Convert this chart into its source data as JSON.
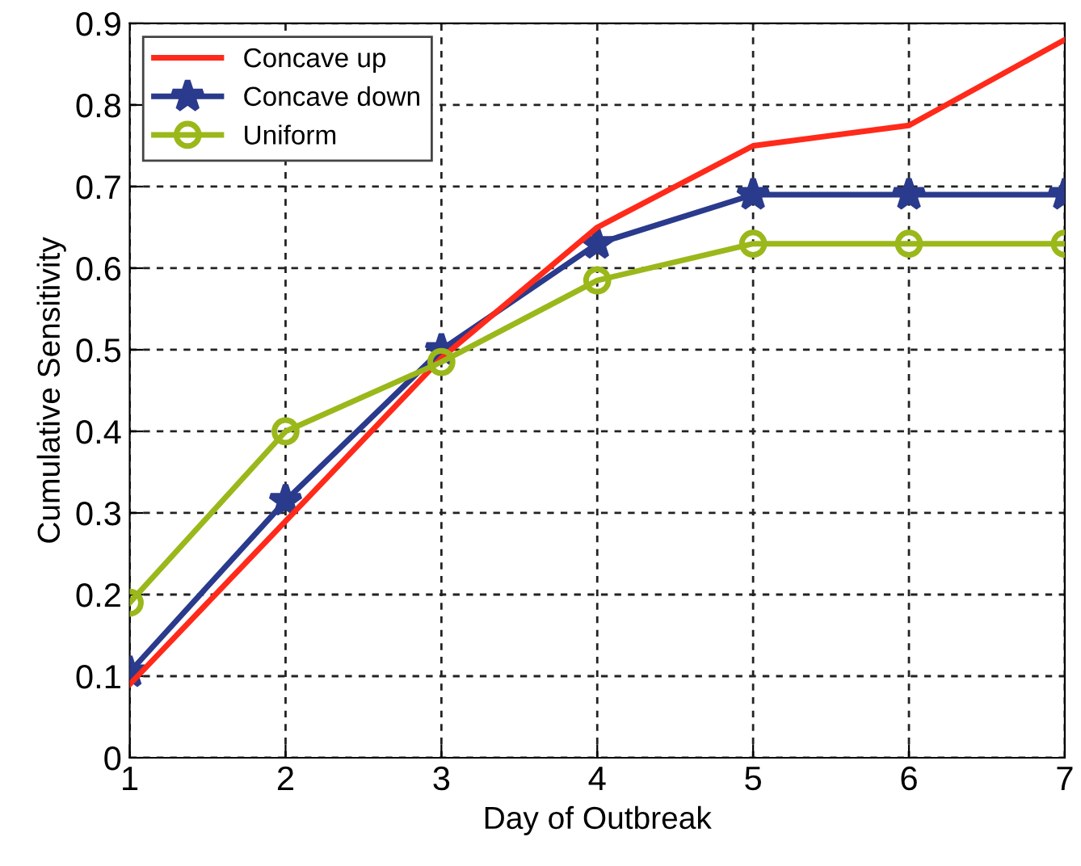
{
  "chart_data": {
    "type": "line",
    "xlabel": "Day of Outbreak",
    "ylabel": "Cumulative Sensitivity",
    "x": [
      1,
      2,
      3,
      4,
      5,
      6,
      7
    ],
    "series": [
      {
        "name": "Concave up",
        "color": "#ff2a1a",
        "marker": "none",
        "values": [
          0.09,
          0.29,
          0.49,
          0.65,
          0.75,
          0.775,
          0.88
        ]
      },
      {
        "name": "Concave down",
        "color": "#2a3a8c",
        "marker": "star",
        "values": [
          0.105,
          0.315,
          0.5,
          0.63,
          0.69,
          0.69,
          0.69
        ]
      },
      {
        "name": "Uniform",
        "color": "#9ab81a",
        "marker": "circle",
        "values": [
          0.19,
          0.4,
          0.485,
          0.585,
          0.63,
          0.63,
          0.63
        ]
      }
    ],
    "xlim": [
      1,
      7
    ],
    "xticks": [
      1,
      2,
      3,
      4,
      5,
      6,
      7
    ],
    "ylim": [
      0,
      0.9
    ],
    "yticks": [
      0,
      0.1,
      0.2,
      0.3,
      0.4,
      0.5,
      0.6,
      0.7,
      0.8,
      0.9
    ],
    "grid": true,
    "line_style": "solid",
    "legend": "top left"
  }
}
